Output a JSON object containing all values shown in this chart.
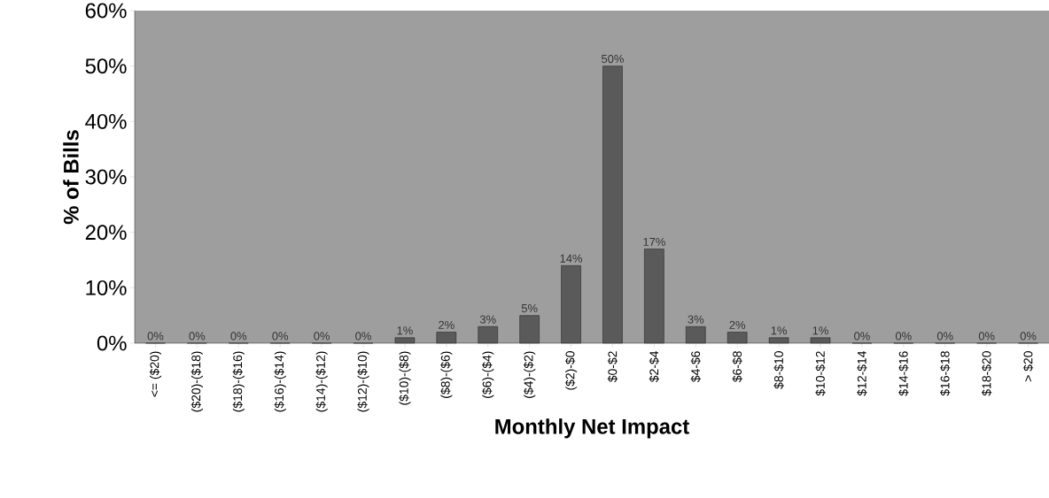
{
  "chart_data": {
    "type": "bar",
    "xlabel": "Monthly Net Impact",
    "ylabel": "% of Bills",
    "categories": [
      "<= ($20)",
      "($20)-($18)",
      "($18)-($16)",
      "($16)-($14)",
      "($14)-($12)",
      "($12)-($10)",
      "($10)-($8)",
      "($8)-($6)",
      "($6)-($4)",
      "($4)-($2)",
      "($2)-$0",
      "$0-$2",
      "$2-$4",
      "$4-$6",
      "$6-$8",
      "$8-$10",
      "$10-$12",
      "$12-$14",
      "$14-$16",
      "$16-$18",
      "$18-$20",
      "> $20"
    ],
    "values": [
      0,
      0,
      0,
      0,
      0,
      0,
      1,
      2,
      3,
      5,
      14,
      50,
      17,
      3,
      2,
      1,
      1,
      0,
      0,
      0,
      0,
      0
    ],
    "value_labels": [
      "0%",
      "0%",
      "0%",
      "0%",
      "0%",
      "0%",
      "1%",
      "2%",
      "3%",
      "5%",
      "14%",
      "50%",
      "17%",
      "3%",
      "2%",
      "1%",
      "1%",
      "0%",
      "0%",
      "0%",
      "0%",
      "0%"
    ],
    "color": "#5a5a5a",
    "ylim": [
      0,
      60
    ],
    "yticks": [
      {
        "value": 0,
        "label": "0%"
      },
      {
        "value": 10,
        "label": "10%"
      },
      {
        "value": 20,
        "label": "20%"
      },
      {
        "value": 30,
        "label": "30%"
      },
      {
        "value": 40,
        "label": "40%"
      },
      {
        "value": 50,
        "label": "50%"
      },
      {
        "value": 60,
        "label": "60%"
      }
    ],
    "grid": false
  }
}
